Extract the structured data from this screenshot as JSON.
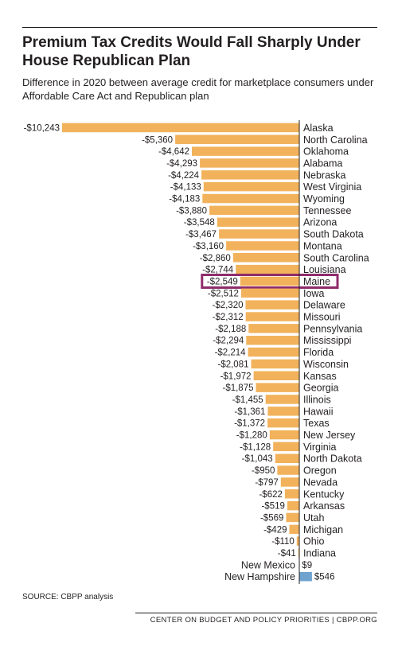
{
  "title": "Premium Tax Credits Would Fall Sharply Under House Republican Plan",
  "subtitle": "Difference in 2020 between average credit for marketplace consumers under Affordable Care Act and Republican plan",
  "source": "SOURCE:  CBPP analysis",
  "footer": "CENTER ON BUDGET AND POLICY PRIORITIES | CBPP.ORG",
  "colors": {
    "negative": "#f2b25c",
    "positive": "#6fa3cf",
    "highlight": "#8e2c6b",
    "axis": "#231f20"
  },
  "chart_data": {
    "type": "bar",
    "orientation": "horizontal",
    "title": "Premium Tax Credits Would Fall Sharply Under House Republican Plan",
    "subtitle": "Difference in 2020 between average credit for marketplace consumers under Affordable Care Act and Republican plan",
    "xlim": [
      -10243,
      546
    ],
    "grid": false,
    "highlighted_category": "Maine",
    "categories": [
      "Alaska",
      "North Carolina",
      "Oklahoma",
      "Alabama",
      "Nebraska",
      "West Virginia",
      "Wyoming",
      "Tennessee",
      "Arizona",
      "South Dakota",
      "Montana",
      "South Carolina",
      "Louisiana",
      "Maine",
      "Iowa",
      "Delaware",
      "Missouri",
      "Pennsylvania",
      "Mississippi",
      "Florida",
      "Wisconsin",
      "Kansas",
      "Georgia",
      "Illinois",
      "Hawaii",
      "Texas",
      "New Jersey",
      "Virginia",
      "North Dakota",
      "Oregon",
      "Nevada",
      "Kentucky",
      "Arkansas",
      "Utah",
      "Michigan",
      "Ohio",
      "Indiana",
      "New Mexico",
      "New Hampshire"
    ],
    "values": [
      -10243,
      -5360,
      -4642,
      -4293,
      -4224,
      -4133,
      -4183,
      -3880,
      -3548,
      -3467,
      -3160,
      -2860,
      -2744,
      -2549,
      -2512,
      -2320,
      -2312,
      -2188,
      -2294,
      -2214,
      -2081,
      -1972,
      -1875,
      -1455,
      -1361,
      -1372,
      -1280,
      -1128,
      -1043,
      -950,
      -797,
      -622,
      -519,
      -569,
      -429,
      -110,
      -41,
      9,
      546
    ],
    "value_labels": [
      "-$10,243",
      "-$5,360",
      "-$4,642",
      "-$4,293",
      "-$4,224",
      "-$4,133",
      "-$4,183",
      "-$3,880",
      "-$3,548",
      "-$3,467",
      "-$3,160",
      "-$2,860",
      "-$2,744",
      "-$2,549",
      "-$2,512",
      "-$2,320",
      "-$2,312",
      "-$2,188",
      "-$2,294",
      "-$2,214",
      "-$2,081",
      "-$1,972",
      "-$1,875",
      "-$1,455",
      "-$1,361",
      "-$1,372",
      "-$1,280",
      "-$1,128",
      "-$1,043",
      "-$950",
      "-$797",
      "-$622",
      "-$519",
      "-$569",
      "-$429",
      "-$110",
      "-$41",
      "$9",
      "$546"
    ]
  }
}
